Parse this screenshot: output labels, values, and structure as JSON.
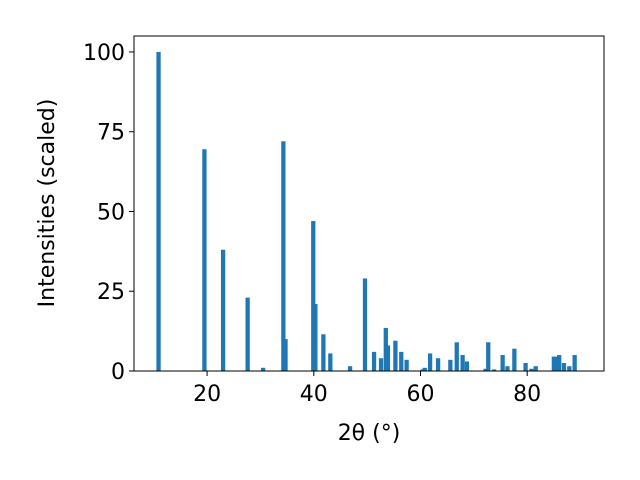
{
  "chart_data": {
    "type": "bar",
    "title": "",
    "xlabel": "2θ (°)",
    "ylabel": "Intensities (scaled)",
    "xlim": [
      6.3,
      94.4
    ],
    "ylim": [
      0,
      105
    ],
    "x_ticks": [
      20,
      40,
      60,
      80
    ],
    "x_tick_labels": [
      "20",
      "40",
      "60",
      "80"
    ],
    "y_ticks": [
      0,
      25,
      50,
      75,
      100
    ],
    "y_tick_labels": [
      "0",
      "25",
      "50",
      "75",
      "100"
    ],
    "grid": false,
    "bar_color": "#1f77b4",
    "bar_width": 0.8,
    "x": [
      10.9,
      19.5,
      23.0,
      27.6,
      30.5,
      34.3,
      34.7,
      39.9,
      40.3,
      41.8,
      43.1,
      46.8,
      49.6,
      51.3,
      52.6,
      53.5,
      53.9,
      55.3,
      56.4,
      57.4,
      60.4,
      60.8,
      61.8,
      63.3,
      65.6,
      66.8,
      67.9,
      68.7,
      72.2,
      72.7,
      73.8,
      75.4,
      76.3,
      77.6,
      79.7,
      80.8,
      81.6,
      85.0,
      85.6,
      86.0,
      86.9,
      87.9,
      88.9
    ],
    "values": [
      100,
      69.5,
      38,
      23,
      1,
      72,
      10,
      47,
      21,
      11.5,
      5.5,
      1.5,
      29,
      6,
      4,
      13.5,
      8,
      9.5,
      6,
      3.5,
      0.5,
      1,
      5.5,
      4,
      3.5,
      9,
      5,
      3,
      0.7,
      9,
      0.5,
      5,
      1.5,
      7,
      2.5,
      0.7,
      1.5,
      4.5,
      4.5,
      5,
      2.5,
      1.5,
      5
    ]
  }
}
